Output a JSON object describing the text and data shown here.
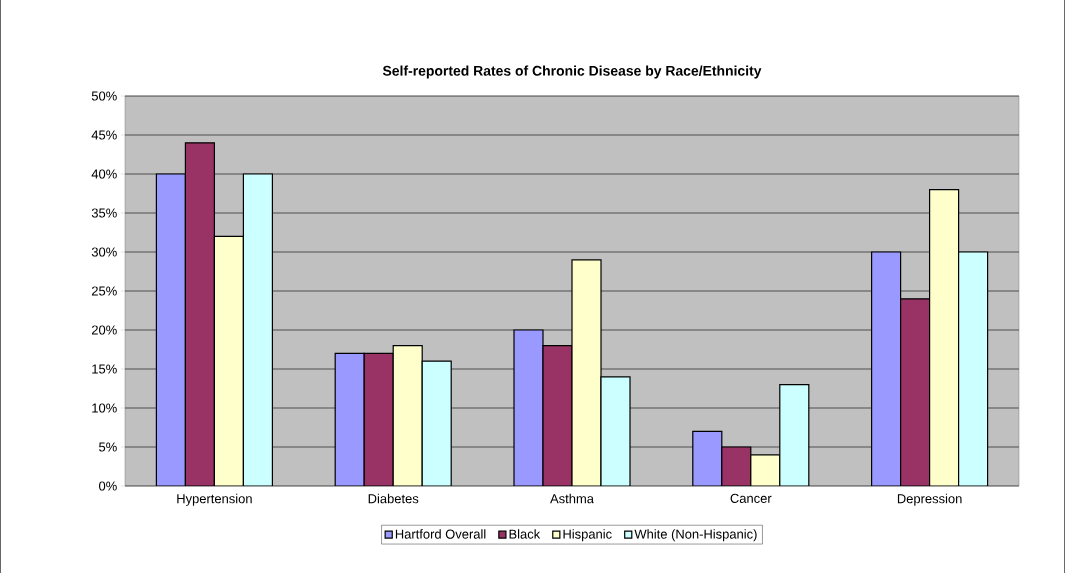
{
  "chart_data": {
    "type": "bar",
    "title": "Self-reported Rates of Chronic Disease by Race/Ethnicity",
    "categories": [
      "Hypertension",
      "Diabetes",
      "Asthma",
      "Cancer",
      "Depression"
    ],
    "series": [
      {
        "name": "Hartford Overall",
        "color": "#9999ff",
        "values": [
          40,
          17,
          20,
          7,
          30
        ]
      },
      {
        "name": "Black",
        "color": "#993366",
        "values": [
          44,
          17,
          18,
          5,
          24
        ]
      },
      {
        "name": "Hispanic",
        "color": "#ffffcc",
        "values": [
          32,
          18,
          29,
          4,
          38
        ]
      },
      {
        "name": "White (Non-Hispanic)",
        "color": "#ccffff",
        "values": [
          40,
          16,
          14,
          13,
          30
        ]
      }
    ],
    "ylim": [
      0,
      50
    ],
    "yticks": [
      {
        "value": 0,
        "label": "0%"
      },
      {
        "value": 5,
        "label": "5%"
      },
      {
        "value": 10,
        "label": "10%"
      },
      {
        "value": 15,
        "label": "15%"
      },
      {
        "value": 20,
        "label": "20%"
      },
      {
        "value": 25,
        "label": "25%"
      },
      {
        "value": 30,
        "label": "30%"
      },
      {
        "value": 35,
        "label": "35%"
      },
      {
        "value": 40,
        "label": "40%"
      },
      {
        "value": 45,
        "label": "45%"
      },
      {
        "value": 50,
        "label": "50%"
      }
    ],
    "grid": "y",
    "legend": "bottom"
  }
}
